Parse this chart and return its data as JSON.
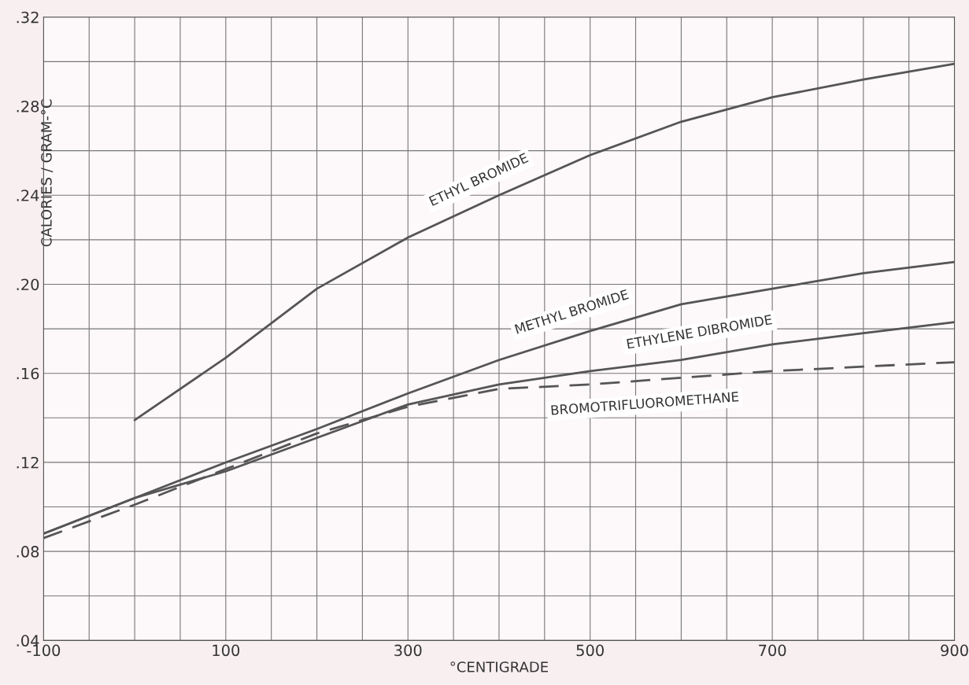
{
  "chart_data": {
    "type": "line",
    "xlabel": "°CENTIGRADE",
    "ylabel": "CALORIES / GRAM-°C",
    "xlim": [
      -100,
      900
    ],
    "ylim": [
      0.04,
      0.32
    ],
    "xticks": [
      -100,
      100,
      300,
      500,
      700,
      900
    ],
    "yticks": [
      {
        "value": 0.04,
        "label": ".04"
      },
      {
        "value": 0.08,
        "label": ".08"
      },
      {
        "value": 0.12,
        "label": ".12"
      },
      {
        "value": 0.16,
        "label": ".16"
      },
      {
        "value": 0.2,
        "label": ".20"
      },
      {
        "value": 0.24,
        "label": ".24"
      },
      {
        "value": 0.28,
        "label": ".28"
      },
      {
        "value": 0.32,
        "label": ".32"
      }
    ],
    "grid": true,
    "legend": false,
    "marker": "none",
    "series": [
      {
        "name": "ETHYL BROMIDE",
        "color": "#555555",
        "line_style": "solid",
        "x": [
          0,
          100,
          200,
          300,
          400,
          500,
          600,
          700,
          800,
          900
        ],
        "values": [
          0.139,
          0.167,
          0.198,
          0.221,
          0.24,
          0.258,
          0.273,
          0.284,
          0.292,
          0.299
        ]
      },
      {
        "name": "METHYL BROMIDE",
        "color": "#555555",
        "line_style": "solid",
        "x": [
          -100,
          0,
          100,
          200,
          300,
          400,
          500,
          600,
          700,
          800,
          900
        ],
        "values": [
          0.088,
          0.104,
          0.12,
          0.135,
          0.151,
          0.166,
          0.179,
          0.191,
          0.198,
          0.205,
          0.21
        ]
      },
      {
        "name": "ETHYLENE DIBROMIDE",
        "color": "#555555",
        "line_style": "solid",
        "x": [
          -100,
          0,
          100,
          200,
          300,
          400,
          500,
          600,
          700,
          800,
          900
        ],
        "values": [
          0.088,
          0.104,
          0.116,
          0.131,
          0.146,
          0.155,
          0.161,
          0.166,
          0.173,
          0.178,
          0.183
        ]
      },
      {
        "name": "BROMOTRIFLUOROMETHANE",
        "color": "#555555",
        "line_style": "dashed",
        "x": [
          -100,
          0,
          100,
          200,
          300,
          350,
          400,
          500,
          600,
          700,
          800,
          900
        ],
        "values": [
          0.086,
          0.101,
          0.117,
          0.133,
          0.145,
          0.149,
          0.153,
          0.155,
          0.158,
          0.161,
          0.163,
          0.165
        ]
      }
    ]
  }
}
